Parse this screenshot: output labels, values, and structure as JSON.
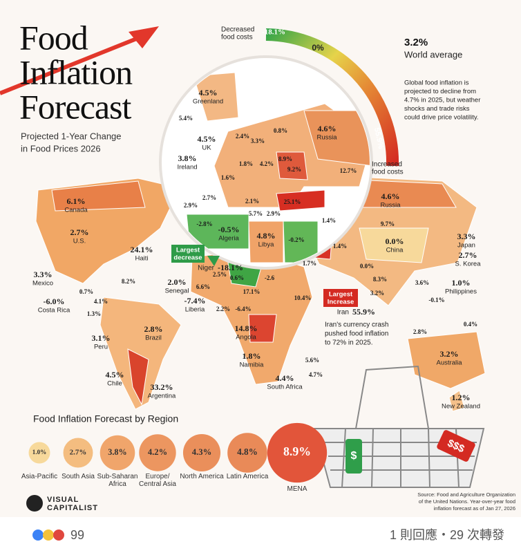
{
  "header": {
    "title": [
      "Food",
      "Inflation",
      "Forecast"
    ],
    "subtitle": [
      "Projected 1-Year Change",
      "in Food Prices 2026"
    ]
  },
  "gauge": {
    "low_label": [
      "Decreased",
      "food costs"
    ],
    "min": "-18.1%",
    "mid": "0%",
    "max": "55.9%",
    "high_label": [
      "Increased",
      "food costs"
    ]
  },
  "world": {
    "value": "3.2%",
    "label": "World average",
    "note": [
      "Global food inflation is",
      "projected to decline from",
      "4.7% in 2025, but weather",
      "shocks and trade risks",
      "could drive price volatility."
    ]
  },
  "map": {
    "labels": [
      {
        "value": "6.1%",
        "name": "Canada"
      },
      {
        "value": "2.7%",
        "name": "U.S."
      },
      {
        "value": "24.1%",
        "name": "Haiti"
      },
      {
        "value": "3.3%",
        "name": "Mexico"
      },
      {
        "value": "8.2%"
      },
      {
        "value": "0.7%"
      },
      {
        "value": "-6.0%",
        "name": "Costa Rica"
      },
      {
        "value": "4.1%"
      },
      {
        "value": "1.3%"
      },
      {
        "value": "2.8%",
        "name": "Brazil"
      },
      {
        "value": "3.1%",
        "name": "Peru"
      },
      {
        "value": "4.5%",
        "name": "Chile"
      },
      {
        "value": "33.2%",
        "name": "Argentina"
      },
      {
        "value": "-18.1%",
        "name": "Niger"
      },
      {
        "value": "2.0%",
        "name": "Senegal"
      },
      {
        "value": "6.6%"
      },
      {
        "value": "-7.4%",
        "name": "Liberia"
      },
      {
        "value": "2.2%"
      },
      {
        "value": "-6.4%"
      },
      {
        "value": "2.5%"
      },
      {
        "value": "0.6%"
      },
      {
        "value": "-2.6"
      },
      {
        "value": "17.1%"
      },
      {
        "value": "10.4%"
      },
      {
        "value": "14.8%",
        "name": "Angola"
      },
      {
        "value": "1.8%",
        "name": "Namibia"
      },
      {
        "value": "4.4%",
        "name": "South Africa"
      },
      {
        "value": "5.6%"
      },
      {
        "value": "4.7%"
      },
      {
        "value": "1.7%"
      },
      {
        "value": "0.0%"
      },
      {
        "value": "8.3%"
      },
      {
        "value": "3.2%"
      },
      {
        "value": "55.9%",
        "name": "Iran"
      },
      {
        "value": "1.4%"
      },
      {
        "value": "4.6%",
        "name": "Russia"
      },
      {
        "value": "9.7%"
      },
      {
        "value": "0.0%",
        "name": "China"
      },
      {
        "value": "3.3%",
        "name": "Japan"
      },
      {
        "value": "2.7%",
        "name": "S. Korea"
      },
      {
        "value": "3.6%"
      },
      {
        "value": "1.0%",
        "name": "Philippines"
      },
      {
        "value": "-0.1%"
      },
      {
        "value": "0.4%"
      },
      {
        "value": "2.8%"
      },
      {
        "value": "3.2%",
        "name": "Australia"
      },
      {
        "value": "1.2%",
        "name": "New Zealand"
      },
      {
        "value": "4.5%",
        "name": "Greenland"
      },
      {
        "value": "5.4%"
      },
      {
        "value": "4.5%",
        "name": "UK"
      },
      {
        "value": "3.8%",
        "name": "Ireland"
      },
      {
        "value": "2.4%"
      },
      {
        "value": "3.3%"
      },
      {
        "value": "0.8%"
      },
      {
        "value": "4.6%",
        "name": "Russia"
      },
      {
        "value": "1.8%"
      },
      {
        "value": "4.2%"
      },
      {
        "value": "8.9%"
      },
      {
        "value": "9.2%"
      },
      {
        "value": "12.7%"
      },
      {
        "value": "1.6%"
      },
      {
        "value": "2.7%"
      },
      {
        "value": "2.9%"
      },
      {
        "value": "2.1%"
      },
      {
        "value": "25.1%"
      },
      {
        "value": "5.7%"
      },
      {
        "value": "2.9%"
      },
      {
        "value": "1.4%"
      },
      {
        "value": "-2.8%"
      },
      {
        "value": "-0.5%",
        "name": "Algeria"
      },
      {
        "value": "4.8%",
        "name": "Libya"
      },
      {
        "value": "-0.2%"
      }
    ],
    "callouts": {
      "largest_decrease": [
        "Largest",
        "decrease"
      ],
      "largest_increase": [
        "Largest",
        "Increase"
      ],
      "iran_note": [
        "Iran's currency crash",
        "pushed food inflation",
        "to 72% in 2025."
      ]
    }
  },
  "chart_data": {
    "type": "bubble",
    "title": "Food Inflation Forecast by Region",
    "categories": [
      "Asia-Pacific",
      "South Asia",
      "Sub-Saharan Africa",
      "Europe/ Central Asia",
      "North America",
      "Latin America",
      "MENA"
    ],
    "values": [
      1.0,
      2.7,
      3.8,
      4.2,
      4.3,
      4.8,
      8.9
    ],
    "value_labels": [
      "1.0%",
      "2.7%",
      "3.8%",
      "4.2%",
      "4.3%",
      "4.8%",
      "8.9%"
    ],
    "colors": [
      "#f7d99b",
      "#f4bd80",
      "#f0a56b",
      "#ec9660",
      "#ea8f5b",
      "#e98a58",
      "#e2553a"
    ]
  },
  "basket_tags": [
    "$",
    "$$$"
  ],
  "brand": [
    "VISUAL",
    "CAPITALIST"
  ],
  "source": [
    "Source: Food and Agriculture Organization",
    "of the United Nations. Year-over-year food",
    "inflation forecast as of Jan 27, 2026"
  ],
  "footer": {
    "reactions": "99",
    "activity": "1 則回應・29 次轉發"
  }
}
